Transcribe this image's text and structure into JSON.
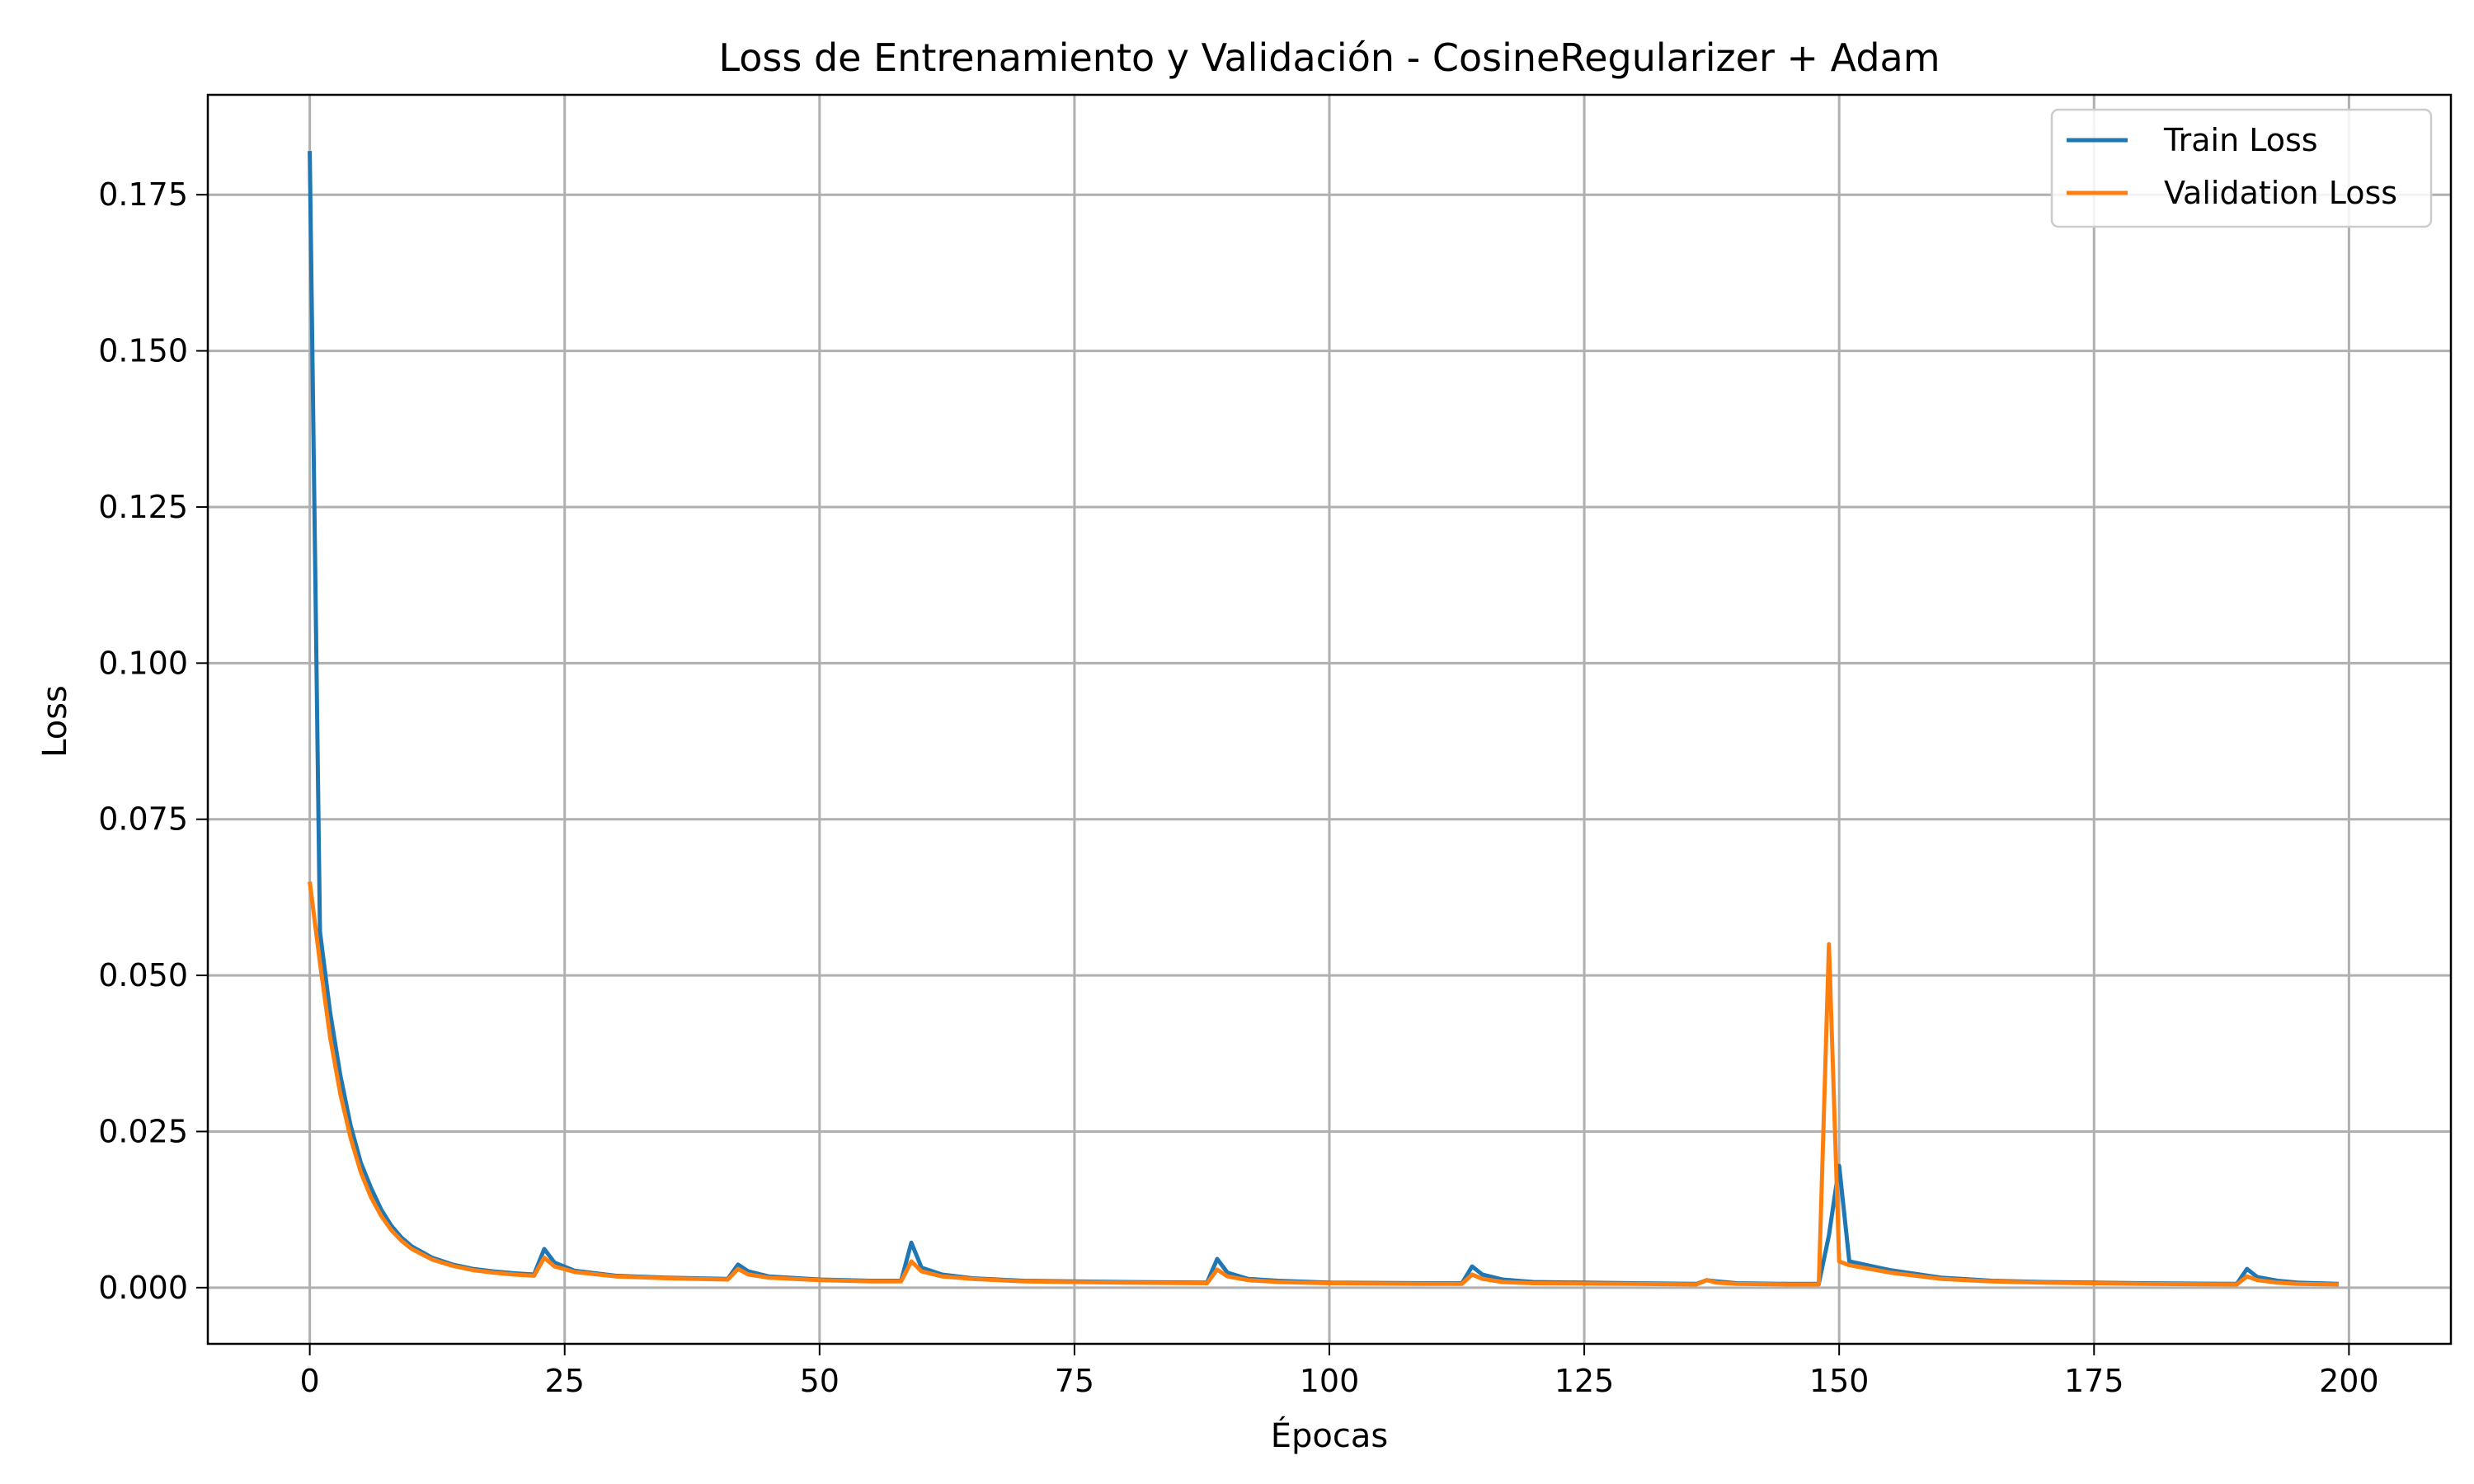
{
  "chart_data": {
    "type": "line",
    "title": "Loss de Entrenamiento y Validación - CosineRegularizer + Adam",
    "xlabel": "Épocas",
    "ylabel": "Loss",
    "xlim": [
      -10,
      210
    ],
    "ylim": [
      -0.009,
      0.191
    ],
    "xticks": [
      0,
      25,
      50,
      75,
      100,
      125,
      150,
      175,
      200
    ],
    "xtick_labels": [
      "0",
      "25",
      "50",
      "75",
      "100",
      "125",
      "150",
      "175",
      "200"
    ],
    "yticks": [
      0.0,
      0.025,
      0.05,
      0.075,
      0.1,
      0.125,
      0.15,
      0.175
    ],
    "ytick_labels": [
      "0.000",
      "0.025",
      "0.050",
      "0.075",
      "0.100",
      "0.125",
      "0.150",
      "0.175"
    ],
    "grid": true,
    "legend_position": "top-right",
    "series": [
      {
        "name": "Train Loss",
        "color": "#1f77b4",
        "x": [
          0,
          1,
          2,
          3,
          4,
          5,
          6,
          7,
          8,
          9,
          10,
          12,
          14,
          16,
          18,
          20,
          22,
          23,
          24,
          26,
          30,
          35,
          41,
          42,
          43,
          45,
          50,
          55,
          58,
          59,
          60,
          62,
          65,
          70,
          80,
          88,
          89,
          90,
          92,
          95,
          100,
          110,
          113,
          114,
          115,
          117,
          120,
          130,
          136,
          137,
          138,
          140,
          145,
          148,
          149,
          150,
          151,
          155,
          160,
          165,
          170,
          180,
          189,
          190,
          191,
          193,
          195,
          199
        ],
        "y": [
          0.182,
          0.057,
          0.044,
          0.034,
          0.026,
          0.02,
          0.016,
          0.0125,
          0.0099,
          0.008,
          0.0066,
          0.0048,
          0.0037,
          0.003,
          0.0026,
          0.0023,
          0.0021,
          0.0062,
          0.004,
          0.0027,
          0.0019,
          0.0016,
          0.0014,
          0.0037,
          0.0026,
          0.0018,
          0.0013,
          0.0011,
          0.0011,
          0.0072,
          0.0032,
          0.0021,
          0.0015,
          0.0011,
          0.0009,
          0.0008,
          0.0046,
          0.0024,
          0.0014,
          0.0011,
          0.0008,
          0.0007,
          0.0007,
          0.0034,
          0.0021,
          0.0013,
          0.0009,
          0.0007,
          0.0006,
          0.0012,
          0.001,
          0.0007,
          0.0006,
          0.0006,
          0.0084,
          0.0195,
          0.0042,
          0.0028,
          0.0016,
          0.0011,
          0.0009,
          0.0007,
          0.0006,
          0.003,
          0.0017,
          0.0011,
          0.0008,
          0.0006
        ]
      },
      {
        "name": "Validation Loss",
        "color": "#ff7f0e",
        "x": [
          0,
          1,
          2,
          3,
          4,
          5,
          6,
          7,
          8,
          9,
          10,
          12,
          14,
          16,
          18,
          20,
          22,
          23,
          24,
          26,
          30,
          35,
          41,
          42,
          43,
          45,
          50,
          55,
          58,
          59,
          60,
          62,
          65,
          70,
          80,
          88,
          89,
          90,
          92,
          95,
          100,
          110,
          113,
          114,
          115,
          117,
          120,
          130,
          136,
          137,
          138,
          140,
          145,
          148,
          149,
          150,
          151,
          155,
          160,
          165,
          170,
          180,
          189,
          190,
          191,
          193,
          195,
          199
        ],
        "y": [
          0.065,
          0.052,
          0.04,
          0.031,
          0.024,
          0.0185,
          0.0145,
          0.0115,
          0.0092,
          0.0075,
          0.0062,
          0.0045,
          0.0035,
          0.0028,
          0.0024,
          0.0021,
          0.0019,
          0.0048,
          0.0034,
          0.0025,
          0.0018,
          0.0015,
          0.0013,
          0.003,
          0.0021,
          0.0016,
          0.0012,
          0.001,
          0.001,
          0.0042,
          0.0026,
          0.0018,
          0.0014,
          0.001,
          0.0008,
          0.0007,
          0.0029,
          0.0018,
          0.0012,
          0.0009,
          0.0007,
          0.0006,
          0.0006,
          0.0021,
          0.0014,
          0.0009,
          0.0007,
          0.0006,
          0.0005,
          0.0012,
          0.0008,
          0.0006,
          0.0005,
          0.0005,
          0.055,
          0.0042,
          0.0036,
          0.0024,
          0.0014,
          0.001,
          0.0008,
          0.0006,
          0.0005,
          0.0018,
          0.0012,
          0.0008,
          0.0006,
          0.0005
        ]
      }
    ]
  }
}
